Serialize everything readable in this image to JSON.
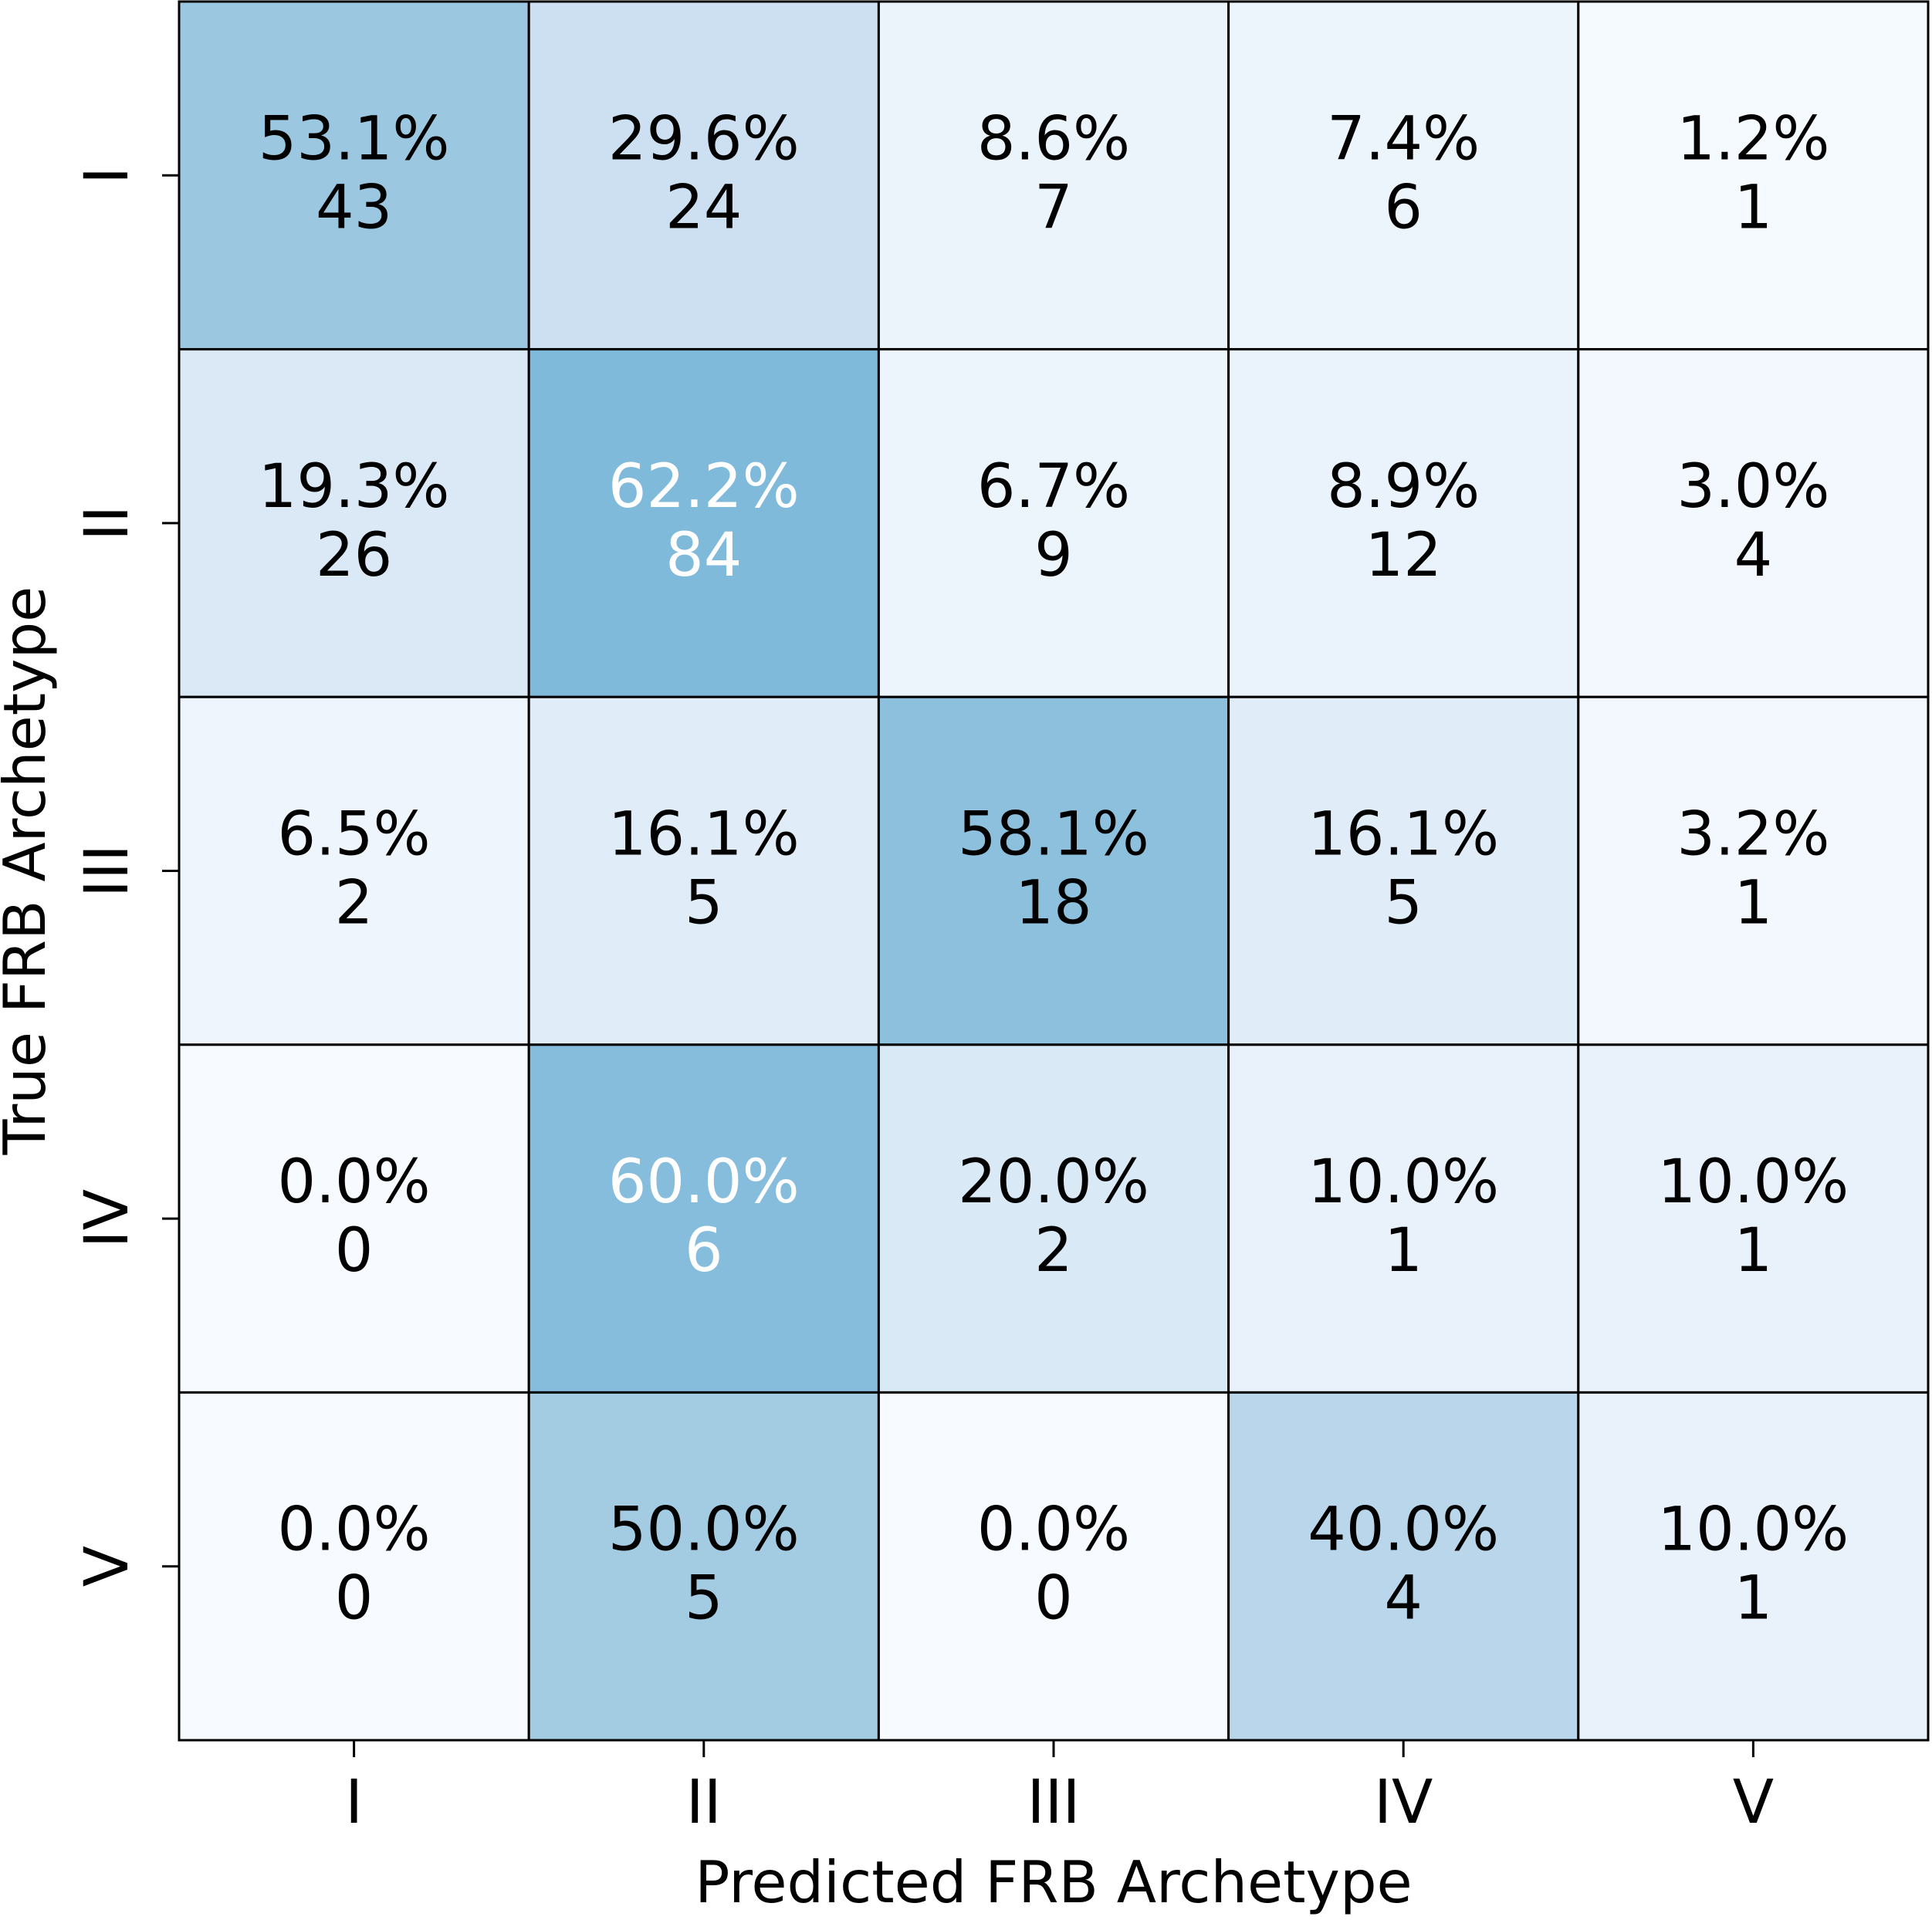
{
  "chart_data": {
    "type": "heatmap",
    "title": "",
    "xlabel": "Predicted FRB Archetype",
    "ylabel": "True FRB Archetype",
    "x_categories": [
      "I",
      "II",
      "III",
      "IV",
      "V"
    ],
    "y_categories": [
      "I",
      "II",
      "III",
      "IV",
      "V"
    ],
    "percent_labels": [
      [
        "53.1%",
        "29.6%",
        "8.6%",
        "7.4%",
        "1.2%"
      ],
      [
        "19.3%",
        "62.2%",
        "6.7%",
        "8.9%",
        "3.0%"
      ],
      [
        "6.5%",
        "16.1%",
        "58.1%",
        "16.1%",
        "3.2%"
      ],
      [
        "0.0%",
        "60.0%",
        "20.0%",
        "10.0%",
        "10.0%"
      ],
      [
        "0.0%",
        "50.0%",
        "0.0%",
        "40.0%",
        "10.0%"
      ]
    ],
    "percent_values": [
      [
        53.1,
        29.6,
        8.6,
        7.4,
        1.2
      ],
      [
        19.3,
        62.2,
        6.7,
        8.9,
        3.0
      ],
      [
        6.5,
        16.1,
        58.1,
        16.1,
        3.2
      ],
      [
        0.0,
        60.0,
        20.0,
        10.0,
        10.0
      ],
      [
        0.0,
        50.0,
        0.0,
        40.0,
        10.0
      ]
    ],
    "counts": [
      [
        43,
        24,
        7,
        6,
        1
      ],
      [
        26,
        84,
        9,
        12,
        4
      ],
      [
        2,
        5,
        18,
        5,
        1
      ],
      [
        0,
        6,
        2,
        1,
        1
      ],
      [
        0,
        5,
        0,
        4,
        1
      ]
    ],
    "colormap": "Blues",
    "color_min": "#f7fbff",
    "color_max": "#08306b",
    "text_light_color": "#ffffff",
    "text_dark_color": "#000000",
    "grid": true,
    "colorbar": false,
    "legend": "none"
  }
}
